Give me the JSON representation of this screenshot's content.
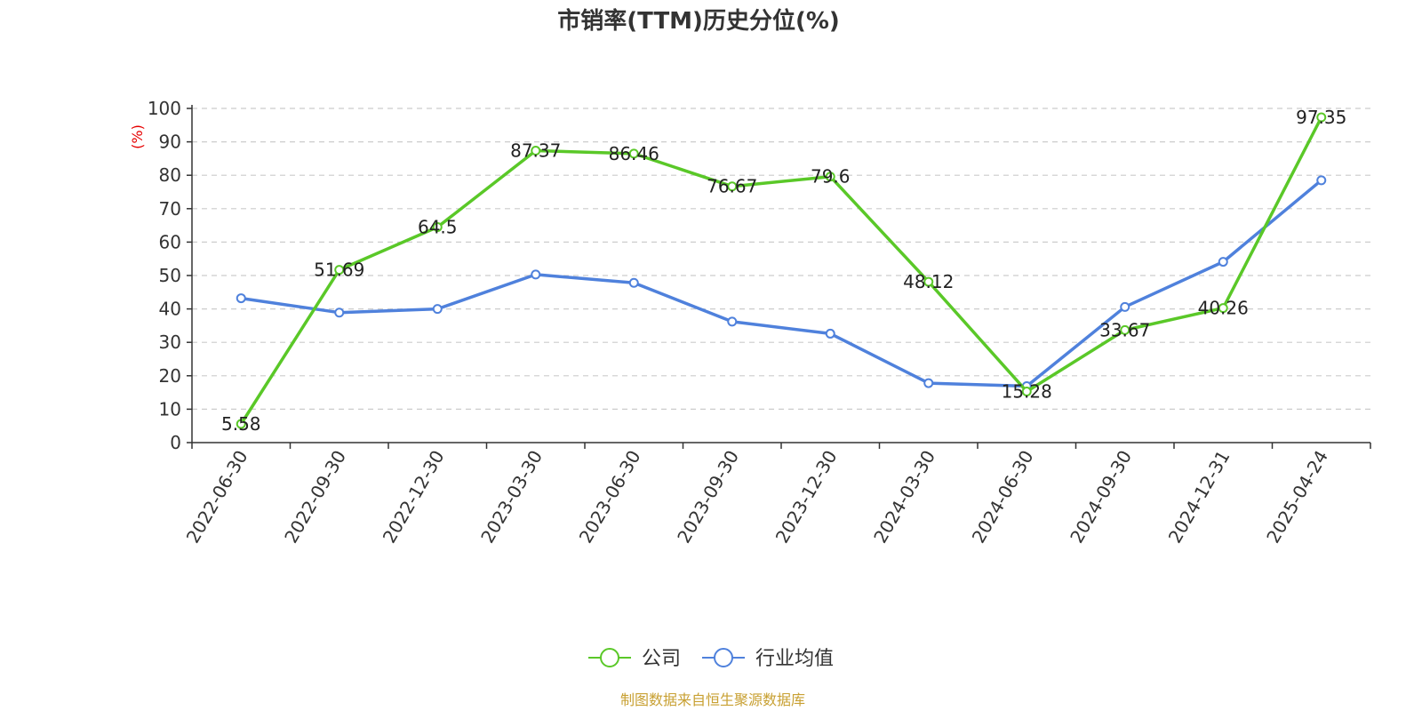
{
  "chart_data": {
    "type": "line",
    "title": "市销率(TTM)历史分位(%)",
    "ylabel": "(%)",
    "xlabel": "",
    "ylim": [
      0,
      100
    ],
    "yticks": [
      0,
      10,
      20,
      30,
      40,
      50,
      60,
      70,
      80,
      90,
      100
    ],
    "grid": true,
    "legend_position": "bottom-center",
    "categories": [
      "2022-06-30",
      "2022-09-30",
      "2022-12-30",
      "2023-03-30",
      "2023-06-30",
      "2023-09-30",
      "2023-12-30",
      "2024-03-30",
      "2024-06-30",
      "2024-09-30",
      "2024-12-31",
      "2025-04-24"
    ],
    "series": [
      {
        "name": "公司",
        "color": "#5ac828",
        "values": [
          5.58,
          51.69,
          64.5,
          87.37,
          86.46,
          76.67,
          79.6,
          48.12,
          15.28,
          33.67,
          40.26,
          97.35
        ],
        "labels": [
          "5.58",
          "51.69",
          "64.5",
          "87.37",
          "86.46",
          "76.67",
          "79.6",
          "48.12",
          "15.28",
          "33.67",
          "40.26",
          "97.35"
        ]
      },
      {
        "name": "行业均值",
        "color": "#4f81dc",
        "values": [
          43.2,
          38.9,
          40.0,
          50.3,
          47.8,
          36.2,
          32.6,
          17.8,
          16.9,
          40.6,
          54.1,
          78.5
        ]
      }
    ],
    "unit_color": "#e60000"
  },
  "source": {
    "text": "制图数据来自恒生聚源数据库",
    "color": "#c8a032"
  }
}
